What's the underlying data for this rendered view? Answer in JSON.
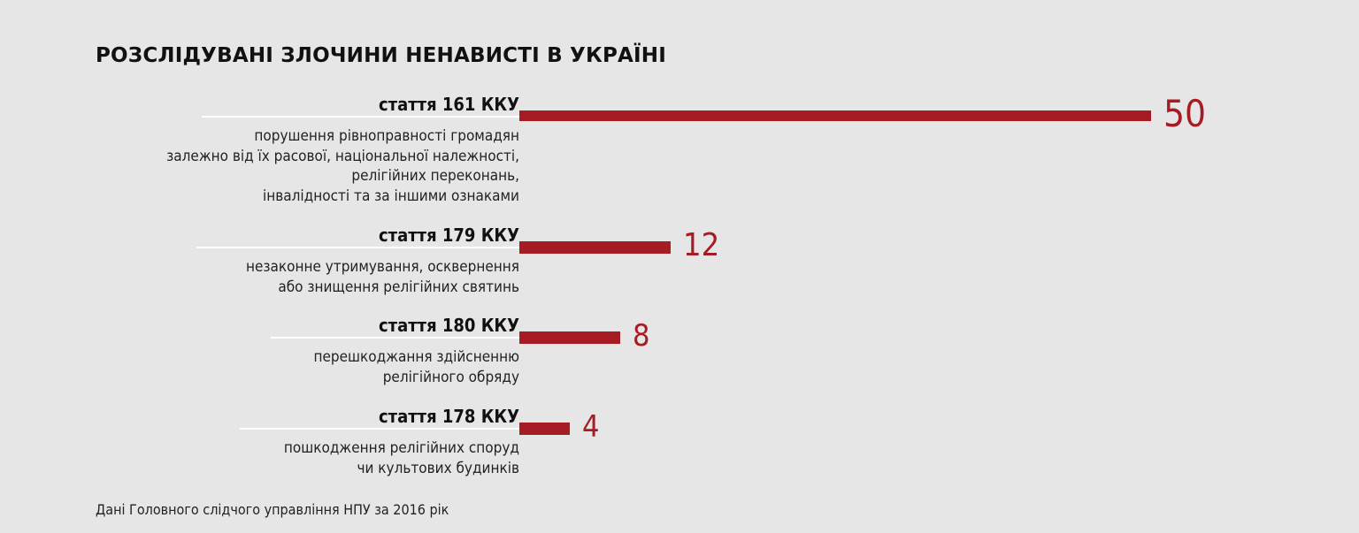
{
  "chart_data": {
    "type": "bar",
    "orientation": "horizontal",
    "title": "РОЗСЛІДУВАНІ ЗЛОЧИНИ НЕНАВИСТІ В УКРАЇНІ",
    "source": "Дані Головного слідчого управління НПУ за 2016 рік",
    "bar_color": "#a61c24",
    "categories": [
      {
        "label": "стаття 161 ККУ",
        "description": "порушення рівноправності громадян\nзалежно від їх расової, національної належності,\nрелігійних переконань,\nінвалідності та за іншими ознаками",
        "value": 50
      },
      {
        "label": "стаття 179 ККУ",
        "description": "незаконне утримування, осквернення\nабо знищення релігійних святинь",
        "value": 12
      },
      {
        "label": "стаття 180 ККУ",
        "description": "перешкоджання здійсненню\nрелігійного обряду",
        "value": 8
      },
      {
        "label": "стаття 178 ККУ",
        "description": "пошкодження релігійних споруд\nчи культових будинків",
        "value": 4
      }
    ],
    "values": [
      50,
      12,
      8,
      4
    ],
    "xlim": [
      0,
      50
    ],
    "grid": false,
    "legend": "none"
  }
}
